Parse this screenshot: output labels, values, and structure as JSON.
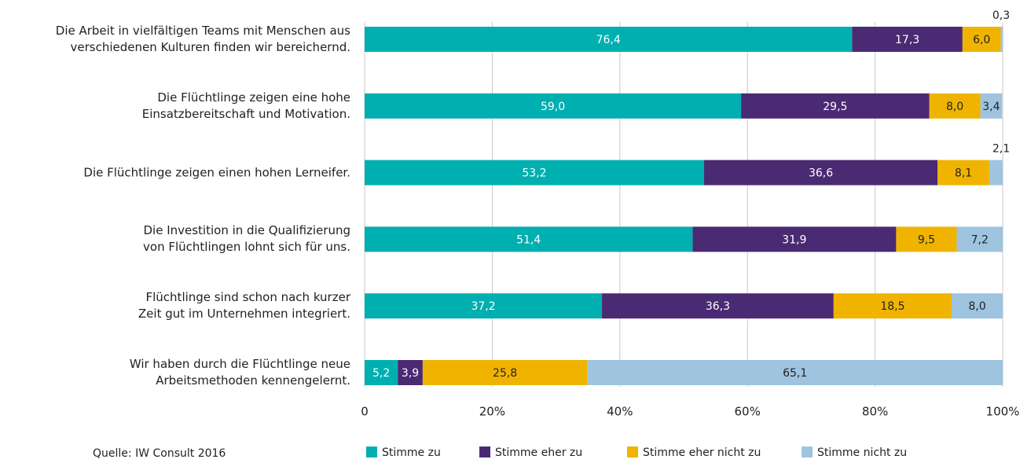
{
  "chart_data": {
    "type": "stacked_bar_horizontal",
    "categories": [
      "Die Arbeit in vielfältigen Teams mit Menschen aus\nverschiedenen Kulturen finden wir bereichernd.",
      "Die Flüchtlinge zeigen eine hohe\nEinsatzbereitschaft und Motivation.",
      "Die Flüchtlinge zeigen einen hohen Lerneifer.",
      "Die Investition in die Qualifizierung\nvon Flüchtlingen lohnt sich für uns.",
      "Flüchtlinge sind schon nach kurzer\nZeit gut im Unternehmen integriert.",
      "Wir haben durch die Flüchtlinge neue\nArbeitsmethoden kennengelernt."
    ],
    "series": [
      {
        "name": "Stimme zu",
        "color": "#00afb0",
        "values": [
          76.4,
          59.0,
          53.2,
          51.4,
          37.2,
          5.2
        ],
        "value_labels": [
          "76,4",
          "59,0",
          "53,2",
          "51,4",
          "37,2",
          "5,2"
        ]
      },
      {
        "name": "Stimme eher zu",
        "color": "#4a2a73",
        "values": [
          17.3,
          29.5,
          36.6,
          31.9,
          36.3,
          3.9
        ],
        "value_labels": [
          "17,3",
          "29,5",
          "36,6",
          "31,9",
          "36,3",
          "3,9"
        ]
      },
      {
        "name": "Stimme eher nicht zu",
        "color": "#f0b400",
        "values": [
          6.0,
          8.0,
          8.1,
          9.5,
          18.5,
          25.8
        ],
        "value_labels": [
          "6,0",
          "8,0",
          "8,1",
          "9,5",
          "18,5",
          "25,8"
        ]
      },
      {
        "name": "Stimme nicht zu",
        "color": "#9ec4df",
        "values": [
          0.3,
          3.4,
          2.1,
          7.2,
          8.0,
          65.1
        ],
        "value_labels": [
          "0,3",
          "3,4",
          "2,1",
          "7,2",
          "8,0",
          "65,1"
        ]
      }
    ],
    "xlim": [
      0,
      100
    ],
    "xticks": [
      0,
      {
        "value": 20,
        "label": "20%"
      },
      {
        "value": 40,
        "label": "40%"
      },
      {
        "value": 60,
        "label": "60%"
      },
      {
        "value": 80,
        "label": "80%"
      },
      {
        "value": 100,
        "label": "100%"
      }
    ],
    "grid": true,
    "legend": "bottom",
    "source": "Quelle: IW Consult 2016"
  }
}
